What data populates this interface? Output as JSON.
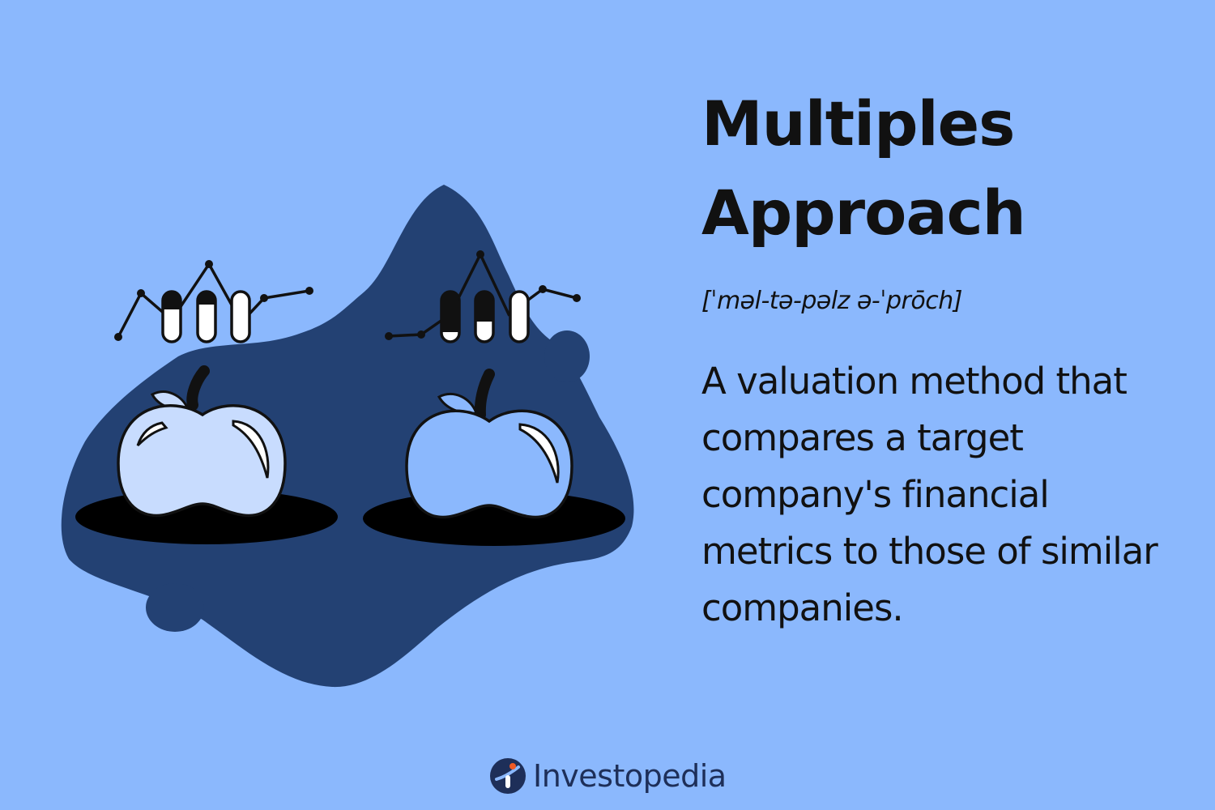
{
  "title_line1": "Multiples",
  "title_line2": "Approach",
  "pronunciation": "[ˈməl-tə-pəlz ə-ˈprōch]",
  "definition": "A valuation method that compares a target company's financial metrics to those of similar companies.",
  "brand": {
    "name": "Investopedia",
    "logo_icon": "investopedia-logo-icon"
  },
  "illustration": {
    "left_apple_icon": "apple-icon",
    "right_apple_icon": "apple-icon",
    "chart_icon": "mini-bar-line-chart-icon"
  },
  "colors": {
    "background": "#8bb8fd",
    "blob": "#234173",
    "apple_light": "#c8dcfe",
    "apple_blue": "#8bb8fd",
    "text": "#111111",
    "brand_text": "#1e2f59",
    "logo_accent": "#ef5a25"
  }
}
